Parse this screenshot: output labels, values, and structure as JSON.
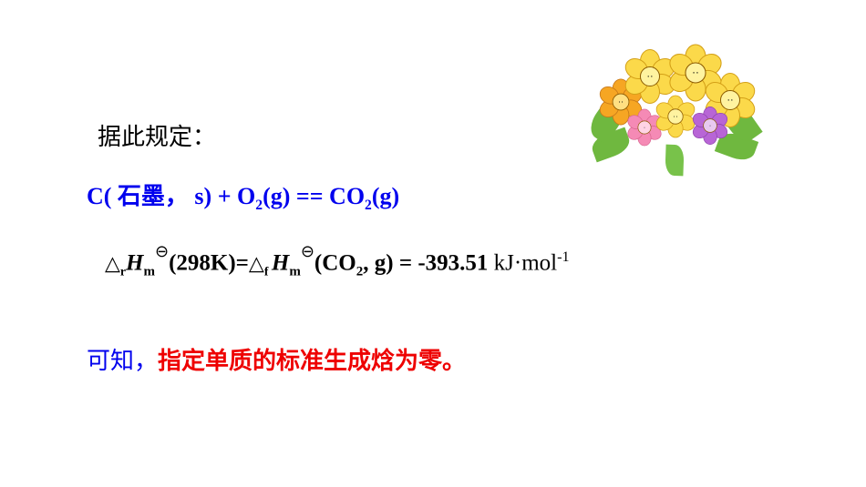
{
  "intro": "据此规定：",
  "equation": {
    "reactant1": "C( 石墨， s)",
    "plus": " + ",
    "reactant2_base": "O",
    "reactant2_sub": "2",
    "reactant2_phase": "(g)",
    "eqsign": "  == ",
    "product_base": "CO",
    "product_sub": "2",
    "product_phase": "(g)"
  },
  "enthalpy": {
    "tri1": "△",
    "sub_r": "r",
    "H1": "H",
    "sub_m1": "m",
    "theta1": "⊖",
    "part1": "(298K)=",
    "tri2": "△",
    "sub_f": "f ",
    "H2": "H",
    "sub_m2": "m",
    "theta2": "⊖",
    "part2_a": "(CO",
    "part2_sub": "2",
    "part2_b": ", g) = -393.51",
    "unit_pre": "  kJ·mol",
    "unit_sup": "-1"
  },
  "conclusion": {
    "prefix": "可知，",
    "emphasis": "指定单质的标准生成焓为零。"
  },
  "decor": {
    "flower_colors": [
      "#fbd94a",
      "#f6a623",
      "#b865d6",
      "#f58ab5"
    ],
    "leaf_color": "#6fb83f"
  }
}
